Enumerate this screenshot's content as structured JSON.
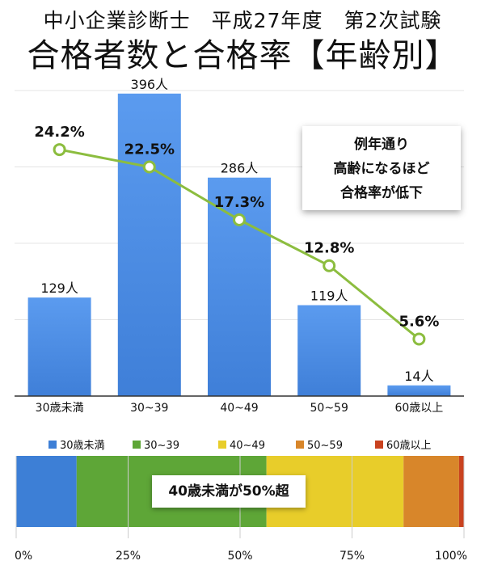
{
  "title_line1": "中小企業診断士　平成27年度　第2次試験",
  "title_line2": "合格者数と合格率【年齢別】",
  "callout": {
    "line1": "例年通り",
    "line2": "高齢になるほど",
    "line3": "合格率が低下"
  },
  "badge": "40歳未満が50%超",
  "colors": {
    "bar": "#4a8be0",
    "line": "#8cbd3f",
    "seg": [
      "#3d7fd6",
      "#5ea637",
      "#e8cd2a",
      "#d8862a",
      "#c9421f"
    ]
  },
  "chart_data": [
    {
      "type": "bar",
      "title": "合格者数と合格率【年齢別】",
      "categories": [
        "30歳未満",
        "30~39",
        "40~49",
        "50~59",
        "60歳以上"
      ],
      "series": [
        {
          "name": "合格者数",
          "values": [
            129,
            396,
            286,
            119,
            14
          ],
          "labels": [
            "129人",
            "396人",
            "286人",
            "119人",
            "14人"
          ]
        },
        {
          "name": "合格率",
          "type": "line",
          "values": [
            24.2,
            22.5,
            17.3,
            12.8,
            5.6
          ],
          "labels": [
            "24.2%",
            "22.5%",
            "17.3%",
            "12.8%",
            "5.6%"
          ]
        }
      ],
      "ylim": [
        0,
        400
      ],
      "rate_ylim": [
        0,
        30
      ],
      "grid": true
    },
    {
      "type": "bar",
      "stacked": "100%",
      "legend": [
        "30歳未満",
        "30~39",
        "40~49",
        "50~59",
        "60歳以上"
      ],
      "values": [
        13.5,
        42.4,
        30.6,
        12.4,
        1.1
      ],
      "xticks": [
        "0%",
        "25%",
        "50%",
        "75%",
        "100%"
      ]
    }
  ]
}
